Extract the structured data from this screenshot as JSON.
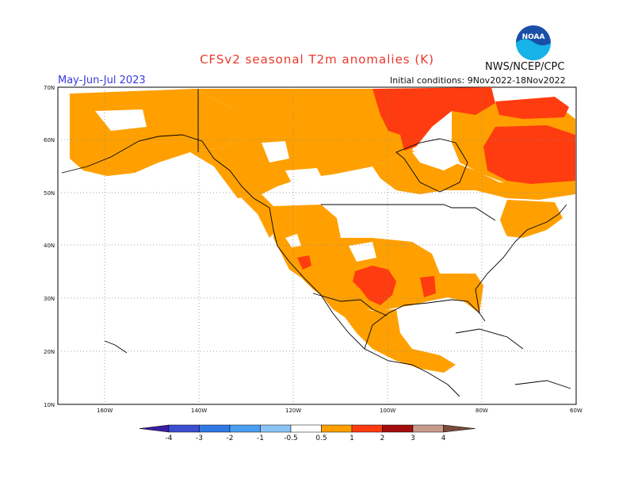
{
  "title": "CFSv2 seasonal T2m anomalies (K)",
  "agency": "NWS/NCEP/CPC",
  "logo_text": "NOAA",
  "season": "May-Jun-Jul 2023",
  "initial_conditions": "Initial conditions: 9Nov2022-18Nov2022",
  "lat_labels": [
    "70N",
    "60N",
    "50N",
    "40N",
    "30N",
    "20N",
    "10N"
  ],
  "lon_labels": [
    "160W",
    "140W",
    "120W",
    "100W",
    "80W",
    "60W"
  ],
  "colorbar": {
    "labels": [
      "-4",
      "-3",
      "-2",
      "-1",
      "-0.5",
      "0.5",
      "1",
      "2",
      "3",
      "4"
    ],
    "colors": [
      "#3a1ea6",
      "#3c4fd1",
      "#2f79e6",
      "#4a9ff0",
      "#8ac4f7",
      "#ffffff",
      "#ffa000",
      "#ff3c0f",
      "#a50d0d",
      "#c79a8c",
      "#7a4a3c"
    ]
  },
  "anomaly_colors": {
    "0.5-1": "#ffa000",
    "1-2": "#ff3c0f"
  }
}
